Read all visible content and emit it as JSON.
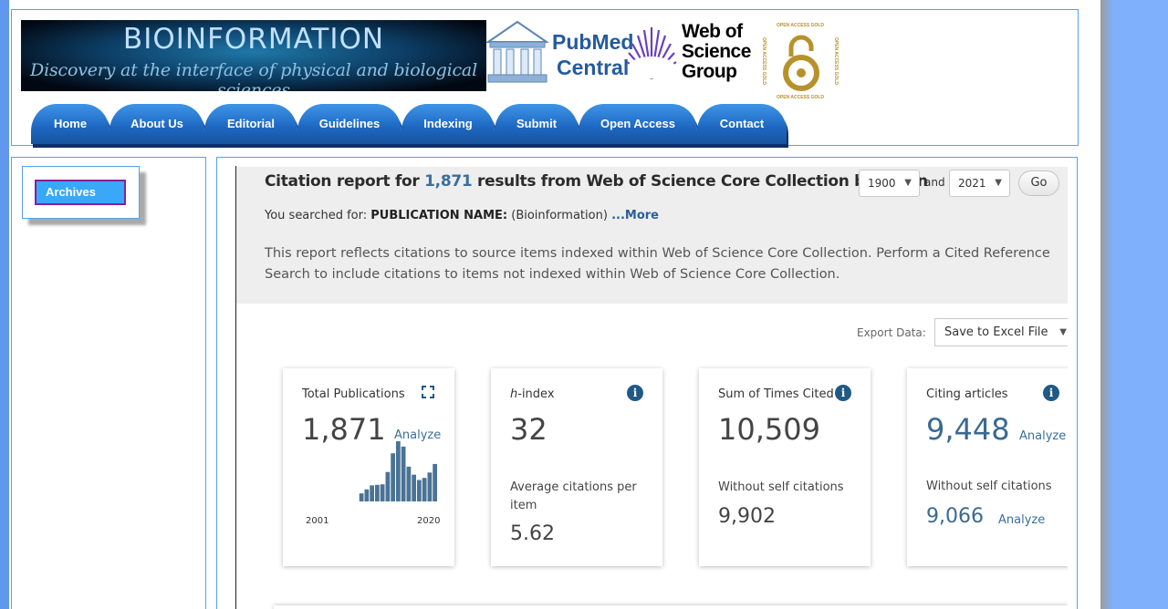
{
  "header": {
    "banner_title": "BIOINFORMATION",
    "banner_subtitle": "Discovery at the interface of physical and biological sciences",
    "pmc_line1": "PubMed",
    "pmc_line2": "Central",
    "wos_line1": "Web of",
    "wos_line2": "Science",
    "wos_line3": "Group",
    "oa_ring_text": "OPEN ACCESS GOLD"
  },
  "nav": {
    "items": [
      "Home",
      "About Us",
      "Editorial",
      "Guidelines",
      "Indexing",
      "Submit",
      "Open Access",
      "Contact"
    ]
  },
  "sidebar": {
    "archives_label": "Archives"
  },
  "report": {
    "title_prefix": "Citation report for",
    "result_count": "1,871",
    "title_suffix": "results from Web of Science Core Collection between",
    "year_from": "1900",
    "and_label": "and",
    "year_to": "2021",
    "go_label": "Go",
    "searched_prefix": "You searched for:",
    "searched_field": "PUBLICATION NAME:",
    "searched_value": "(Bioinformation)",
    "more_label": "...More",
    "description": "This report reflects citations to source items indexed within Web of Science Core Collection. Perform a Cited Reference Search to include citations to items not indexed within Web of Science Core Collection.",
    "export_label": "Export Data:",
    "export_option": "Save to Excel File"
  },
  "cards": {
    "total": {
      "label": "Total Publications",
      "value": "1,871",
      "analyze": "Analyze",
      "axis_start": "2001",
      "axis_end": "2020"
    },
    "hindex": {
      "label_italic": "h",
      "label_rest": "-index",
      "value": "32",
      "sub_label": "Average citations per item",
      "sub_value": "5.62"
    },
    "times_cited": {
      "label": "Sum of Times Cited",
      "value": "10,509",
      "sub_label": "Without self citations",
      "sub_value": "9,902"
    },
    "citing": {
      "label": "Citing articles",
      "value": "9,448",
      "analyze": "Analyze",
      "sub_label": "Without self citations",
      "sub_value": "9,066",
      "sub_analyze": "Analyze"
    }
  },
  "chart_data": {
    "type": "bar",
    "categories": [
      "2001",
      "2002",
      "2003",
      "2004",
      "2005",
      "2006",
      "2007",
      "2008",
      "2009",
      "2010",
      "2011",
      "2012",
      "2013",
      "2014",
      "2015",
      "2016",
      "2017",
      "2018",
      "2019",
      "2020"
    ],
    "values": [
      0,
      0,
      0,
      0,
      0,
      30,
      45,
      60,
      62,
      64,
      110,
      180,
      225,
      205,
      130,
      100,
      80,
      88,
      108,
      140
    ],
    "xlabel": "",
    "ylabel": ""
  },
  "colors": {
    "nav_tab": "#1d66c0",
    "accent_link": "#3a6f9c",
    "archive_button": "#39a8f8",
    "page_background": "#7fb0fb"
  },
  "icons": [
    "pubmed-central-logo",
    "web-of-science-logo",
    "open-access-gold-logo",
    "info-icon",
    "expand-icon",
    "dropdown-caret-icon"
  ]
}
